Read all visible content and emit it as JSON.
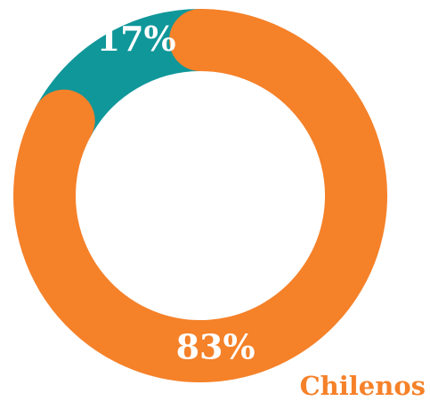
{
  "chart_data": {
    "type": "donut",
    "categories": [
      null,
      "Chilenos"
    ],
    "values": [
      17,
      83
    ],
    "value_labels": [
      "17%",
      "83%"
    ],
    "colors": [
      "#10979a",
      "#f58129"
    ]
  }
}
